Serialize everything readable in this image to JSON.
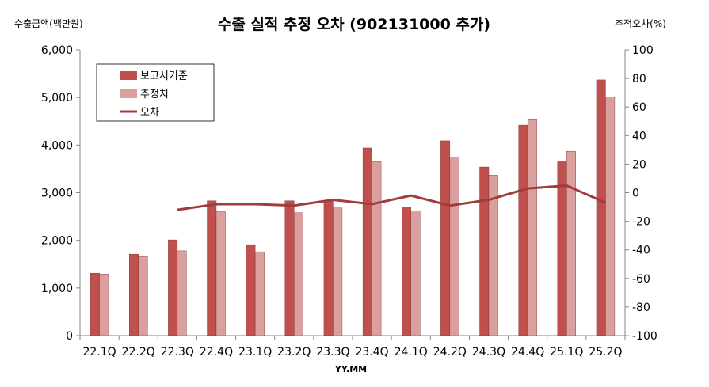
{
  "chart_data": {
    "type": "bar",
    "title": "수출 실적 추정 오차 (902131000 추가)",
    "ylabel_left": "수출금액(백만원)",
    "ylabel_right": "추적오차(%)",
    "xlabel": "YY.MM",
    "categories": [
      "22.1Q",
      "22.2Q",
      "22.3Q",
      "22.4Q",
      "23.1Q",
      "23.2Q",
      "23.3Q",
      "23.4Q",
      "24.1Q",
      "24.2Q",
      "24.3Q",
      "24.4Q",
      "25.1Q",
      "25.2Q"
    ],
    "ylim_left": [
      0,
      6000
    ],
    "ylim_right": [
      -100,
      100
    ],
    "yticks_left": [
      "0",
      "1,000",
      "2,000",
      "3,000",
      "4,000",
      "5,000",
      "6,000"
    ],
    "yticks_right": [
      "-100",
      "-80",
      "-60",
      "-40",
      "-20",
      "0",
      "20",
      "40",
      "60",
      "80",
      "100"
    ],
    "series": [
      {
        "name": "보고서기준",
        "kind": "bar",
        "axis": "left",
        "color": "#c0504d",
        "values": [
          1310,
          1710,
          2010,
          2830,
          1910,
          2830,
          2830,
          3940,
          2700,
          4090,
          3540,
          4420,
          3650,
          5370
        ]
      },
      {
        "name": "추정치",
        "kind": "bar",
        "axis": "left",
        "color": "#d9a09d",
        "values": [
          1290,
          1660,
          1780,
          2610,
          1760,
          2580,
          2680,
          3650,
          2620,
          3750,
          3370,
          4550,
          3870,
          5010
        ]
      },
      {
        "name": "오차",
        "kind": "line",
        "axis": "right",
        "color": "#a33b3b",
        "values": [
          null,
          null,
          -12,
          -8,
          -8,
          -9,
          -5,
          -8,
          -2,
          -9,
          -5,
          3,
          5,
          -7
        ]
      }
    ],
    "legend_position": "top-left"
  }
}
